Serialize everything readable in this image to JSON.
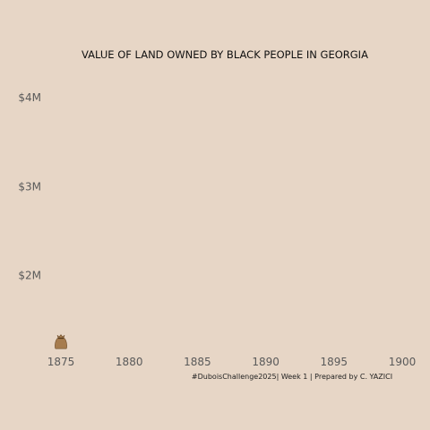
{
  "chart_data": {
    "type": "scatter",
    "title": "VALUE OF LAND OWNED BY BLACK PEOPLE IN GEORGIA",
    "caption": "#DuboisChallenge2025| Week 1 | Prepared by C. YAZICI",
    "xlabel": "",
    "ylabel": "",
    "x_ticks": [
      "1875",
      "1880",
      "1885",
      "1890",
      "1895",
      "1900"
    ],
    "y_ticks": [
      "$2M",
      "$3M",
      "$4M"
    ],
    "xlim": [
      1875,
      1900
    ],
    "ylim": [
      1000000,
      4000000
    ],
    "grid": false,
    "marker": "money-bag-icon",
    "marker_color": "#a67c4e",
    "points": [
      {
        "x": 1875,
        "y": 1250000
      }
    ]
  }
}
